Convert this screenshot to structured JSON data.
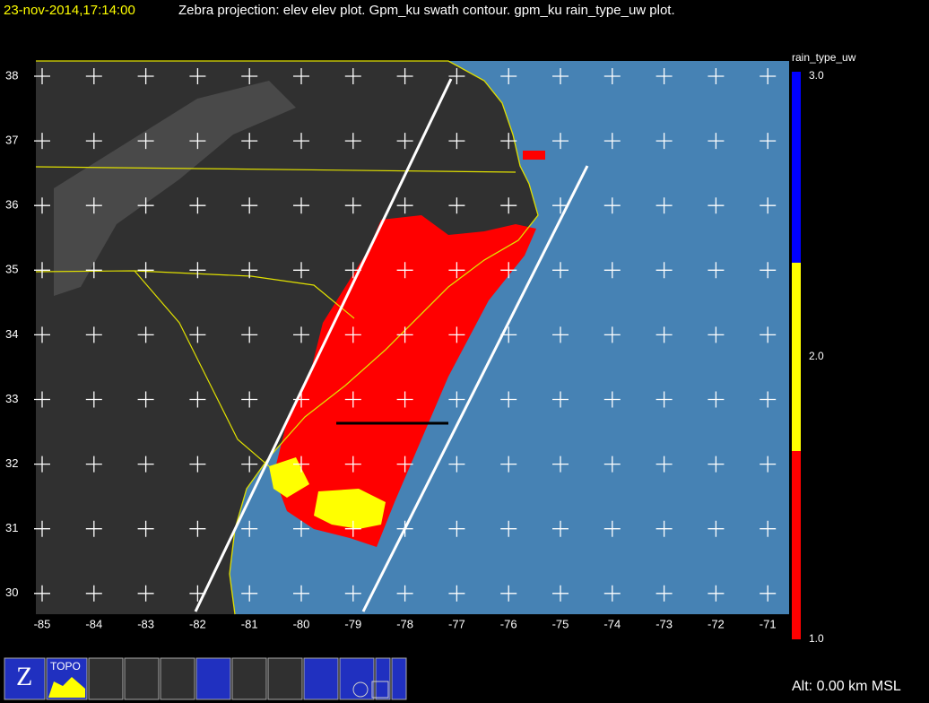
{
  "header": {
    "timestamp": "23-nov-2014,17:14:00",
    "description": "Zebra projection: elev elev  plot.  Gpm_ku swath contour.  gpm_ku rain_type_uw  plot."
  },
  "map": {
    "lat_labels": [
      "38",
      "37",
      "36",
      "35",
      "34",
      "33",
      "32",
      "31",
      "30"
    ],
    "lon_labels": [
      "-85",
      "-84",
      "-83",
      "-82",
      "-81",
      "-80",
      "-79",
      "-78",
      "-77",
      "-76",
      "-75",
      "-74",
      "-73",
      "-72",
      "-71"
    ]
  },
  "colorbar": {
    "title": "rain_type_uw",
    "labels": [
      "3.0",
      "2.0",
      "1.0"
    ]
  },
  "status": {
    "altitude": "Alt: 0.00 km MSL"
  },
  "toolbar": {
    "topo": "TOPO"
  }
}
